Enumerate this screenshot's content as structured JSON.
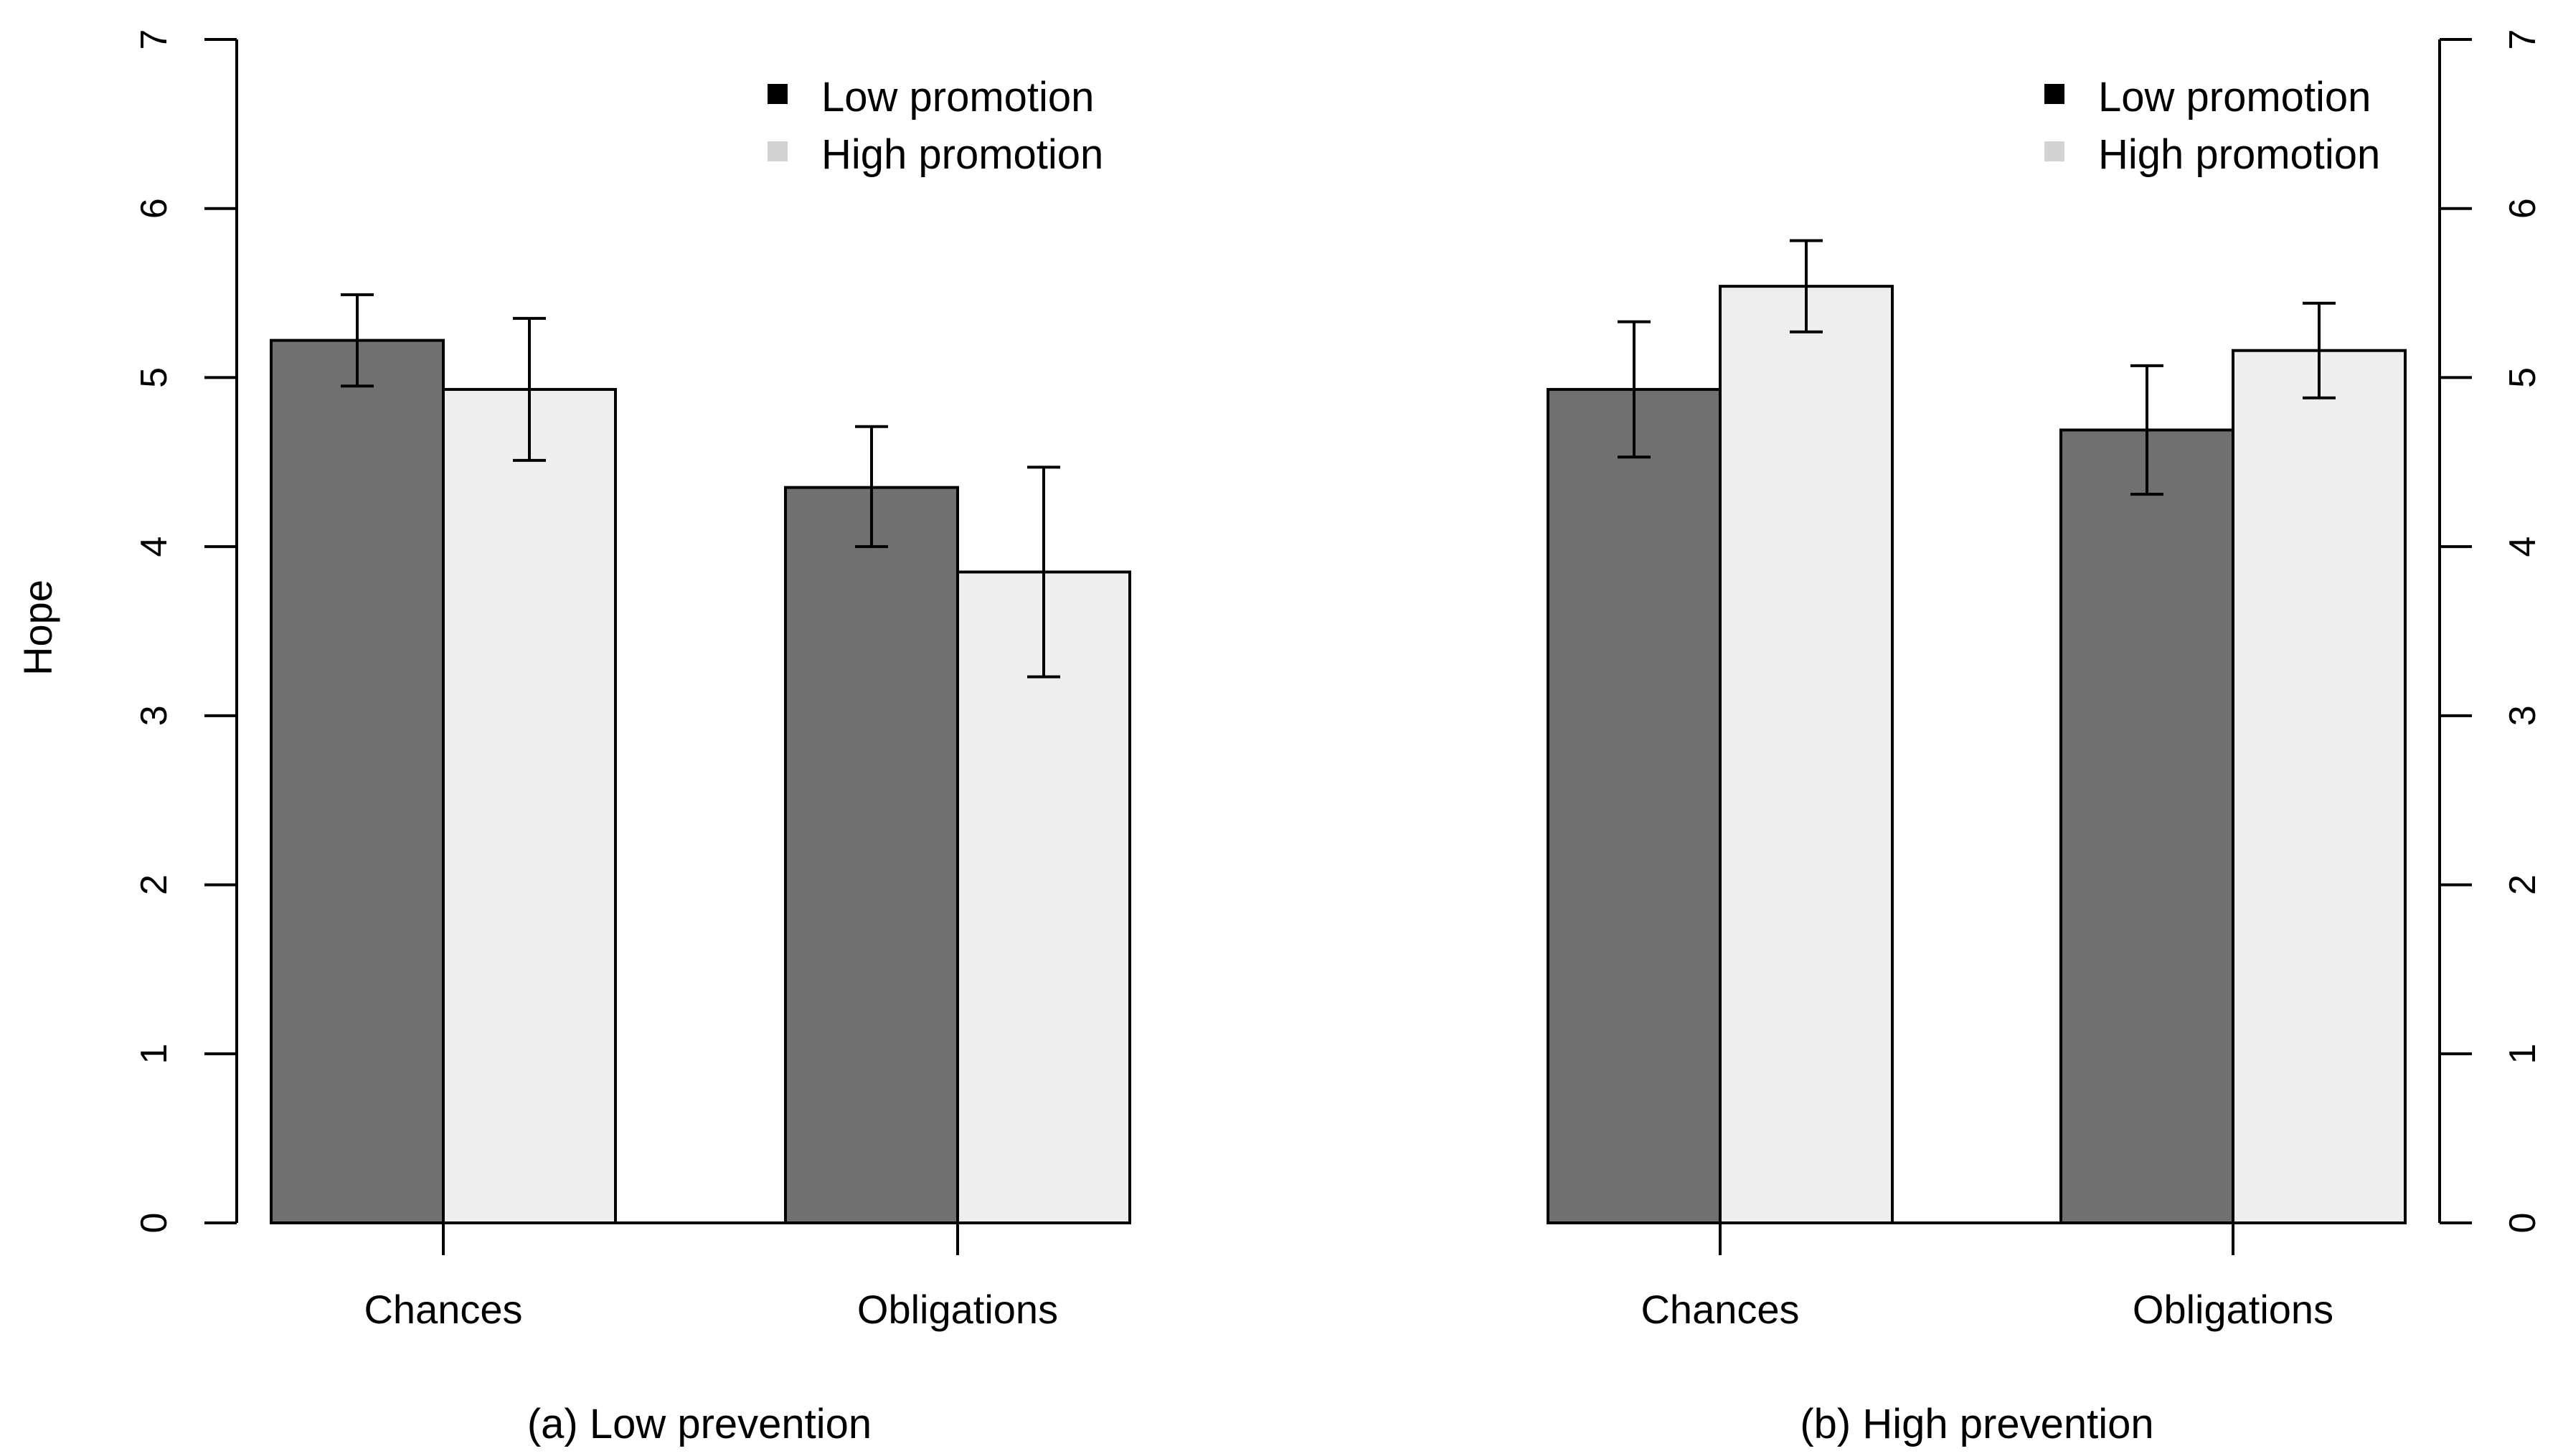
{
  "chart_data": {
    "type": "bar",
    "ylabel": "Hope",
    "ylim": [
      0,
      7
    ],
    "yticks": [
      "0",
      "1",
      "2",
      "3",
      "4",
      "5",
      "6",
      "7"
    ],
    "categories": [
      "Chances",
      "Obligations"
    ],
    "legend": {
      "placement": "top-right",
      "entries": [
        "Low promotion",
        "High promotion"
      ]
    },
    "colors": {
      "low_bar": "#707070",
      "high_bar": "#eeeeee",
      "low_key": "#000000",
      "high_key": "#d3d3d3"
    },
    "panels": [
      {
        "caption": "(a) Low prevention",
        "series": [
          {
            "name": "Low promotion",
            "values": [
              5.22,
              4.35
            ],
            "error_low": [
              4.95,
              4.0
            ],
            "error_high": [
              5.49,
              4.71
            ]
          },
          {
            "name": "High promotion",
            "values": [
              4.93,
              3.85
            ],
            "error_low": [
              4.51,
              3.23
            ],
            "error_high": [
              5.35,
              4.47
            ]
          }
        ]
      },
      {
        "caption": "(b) High prevention",
        "series": [
          {
            "name": "Low promotion",
            "values": [
              4.93,
              4.69
            ],
            "error_low": [
              4.53,
              4.31
            ],
            "error_high": [
              5.33,
              5.07
            ]
          },
          {
            "name": "High promotion",
            "values": [
              5.54,
              5.16
            ],
            "error_low": [
              5.27,
              4.88
            ],
            "error_high": [
              5.81,
              5.44
            ]
          }
        ]
      }
    ]
  }
}
